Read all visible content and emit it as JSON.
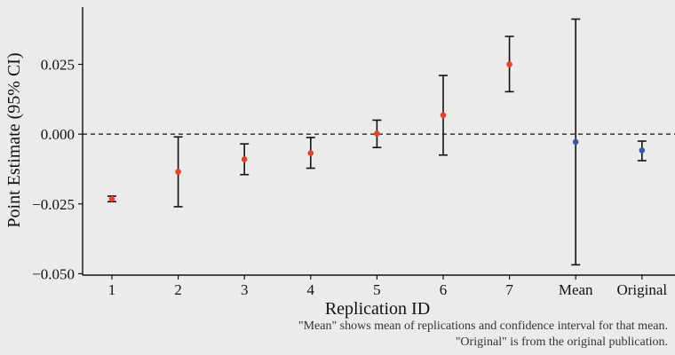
{
  "chart_data": {
    "type": "scatter",
    "subtype": "point-estimate-with-error-bars",
    "xlabel": "Replication ID",
    "ylabel": "Point Estimate (95% CI)",
    "categories": [
      "1",
      "2",
      "3",
      "4",
      "5",
      "6",
      "7",
      "Mean",
      "Original"
    ],
    "points": [
      {
        "category": "1",
        "estimate": -0.0232,
        "lower": -0.0242,
        "upper": -0.0222,
        "kind": "replication"
      },
      {
        "category": "2",
        "estimate": -0.0135,
        "lower": -0.026,
        "upper": -0.001,
        "kind": "replication"
      },
      {
        "category": "3",
        "estimate": -0.009,
        "lower": -0.0145,
        "upper": -0.0035,
        "kind": "replication"
      },
      {
        "category": "4",
        "estimate": -0.0068,
        "lower": -0.0122,
        "upper": -0.0012,
        "kind": "replication"
      },
      {
        "category": "5",
        "estimate": 0.0002,
        "lower": -0.0048,
        "upper": 0.005,
        "kind": "replication"
      },
      {
        "category": "6",
        "estimate": 0.0068,
        "lower": -0.0075,
        "upper": 0.021,
        "kind": "replication"
      },
      {
        "category": "7",
        "estimate": 0.025,
        "lower": 0.0152,
        "upper": 0.035,
        "kind": "replication"
      },
      {
        "category": "Mean",
        "estimate": -0.0028,
        "lower": -0.0468,
        "upper": 0.0412,
        "kind": "mean"
      },
      {
        "category": "Original",
        "estimate": -0.0058,
        "lower": -0.0095,
        "upper": -0.0025,
        "kind": "original"
      }
    ],
    "yticks": [
      -0.05,
      -0.025,
      0.0,
      0.025
    ],
    "ytick_labels": [
      "−0.050",
      "−0.025",
      "0.000",
      "0.025"
    ],
    "ylim": [
      -0.0505,
      0.0455
    ],
    "reference_line": {
      "y": 0.0,
      "style": "dashed"
    },
    "grid": false,
    "colors": {
      "replication": "#e8402a",
      "mean": "#3a56b0",
      "original": "#3a56b0",
      "errorbar": "#111111",
      "background": "#ebebeb"
    }
  },
  "caption": {
    "line1": "\"Mean\" shows mean of replications and confidence interval for that mean.",
    "line2": "\"Original\" is from the original publication."
  }
}
